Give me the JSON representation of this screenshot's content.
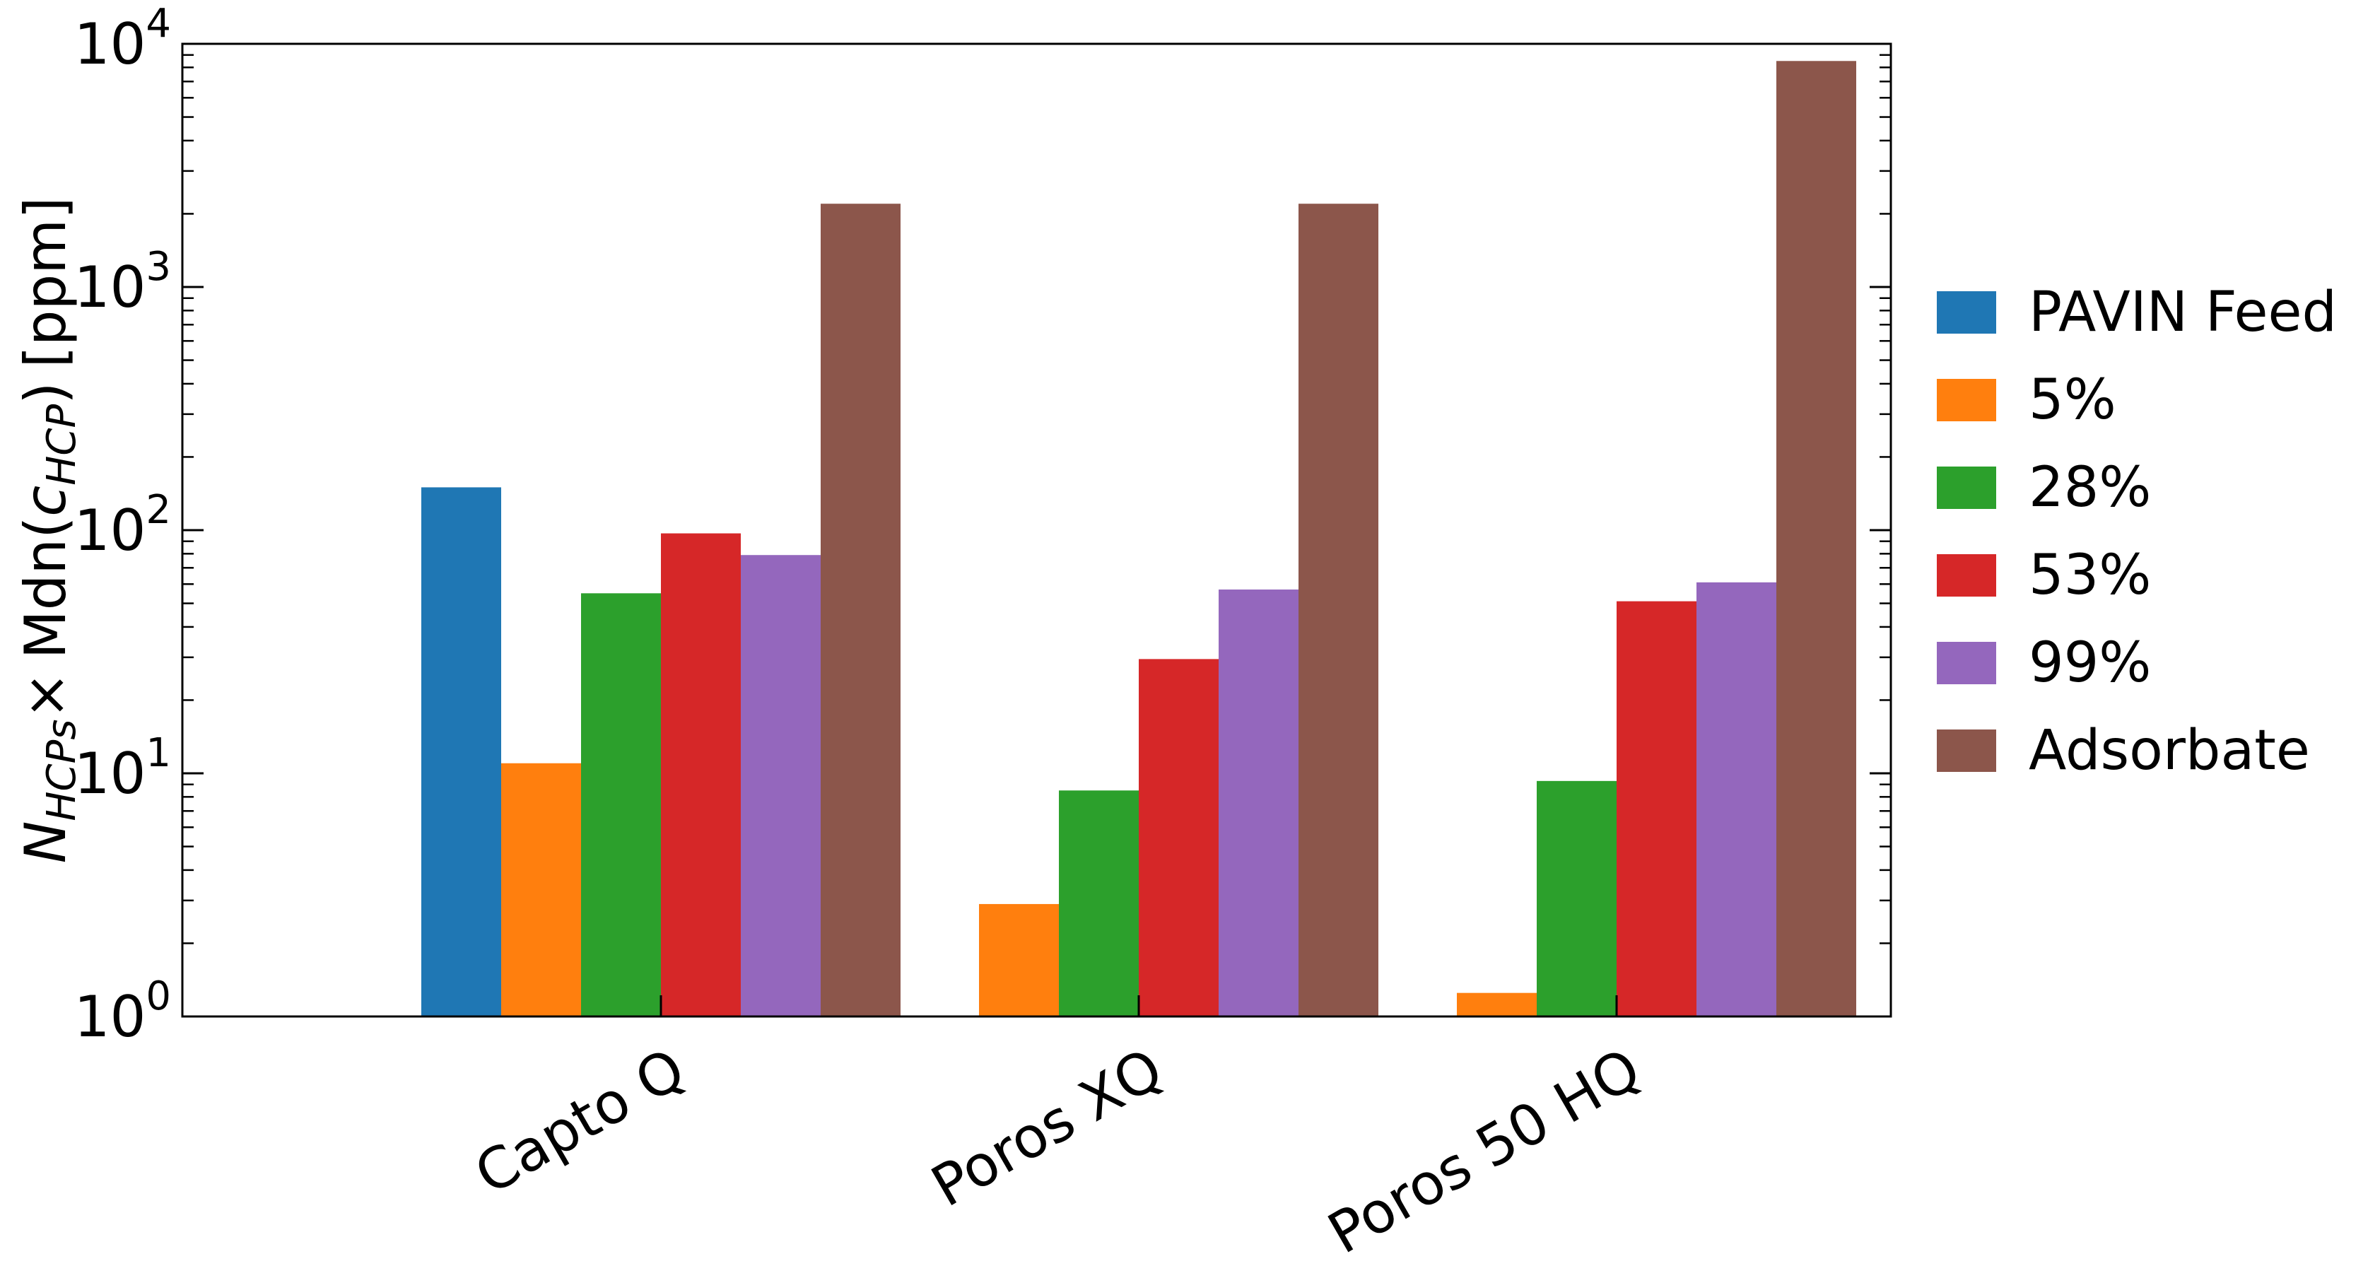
{
  "chart_data": {
    "type": "bar",
    "yscale": "log",
    "ylim": [
      1,
      10000
    ],
    "grid": false,
    "legend_position": "right, outside",
    "ylabel": {
      "n": "N",
      "n_sub": "HCPs",
      "times": "×",
      "mdn": "Mdn(",
      "c": "c",
      "c_sub": "HCP",
      "close": ")",
      "unit": "[ppm]"
    },
    "yticks": [
      {
        "value": 1,
        "base": "10",
        "exp": "0"
      },
      {
        "value": 10,
        "base": "10",
        "exp": "1"
      },
      {
        "value": 100,
        "base": "10",
        "exp": "2"
      },
      {
        "value": 1000,
        "base": "10",
        "exp": "3"
      },
      {
        "value": 10000,
        "base": "10",
        "exp": "4"
      }
    ],
    "categories": [
      "Capto Q",
      "Poros XQ",
      "Poros 50 HQ"
    ],
    "series": [
      {
        "name": "PAVIN Feed",
        "color": "#1f77b4",
        "values": [
          150,
          null,
          null
        ]
      },
      {
        "name": "5%",
        "color": "#ff7f0e",
        "values": [
          11,
          2.9,
          1.25
        ]
      },
      {
        "name": "28%",
        "color": "#2ca02c",
        "values": [
          55,
          8.5,
          9.3
        ]
      },
      {
        "name": "53%",
        "color": "#d62728",
        "values": [
          97,
          29.5,
          51
        ]
      },
      {
        "name": "99%",
        "color": "#9467bd",
        "values": [
          79,
          57,
          61
        ]
      },
      {
        "name": "Adsorbate",
        "color": "#8c564b",
        "values": [
          2200,
          2200,
          8500
        ]
      }
    ]
  }
}
